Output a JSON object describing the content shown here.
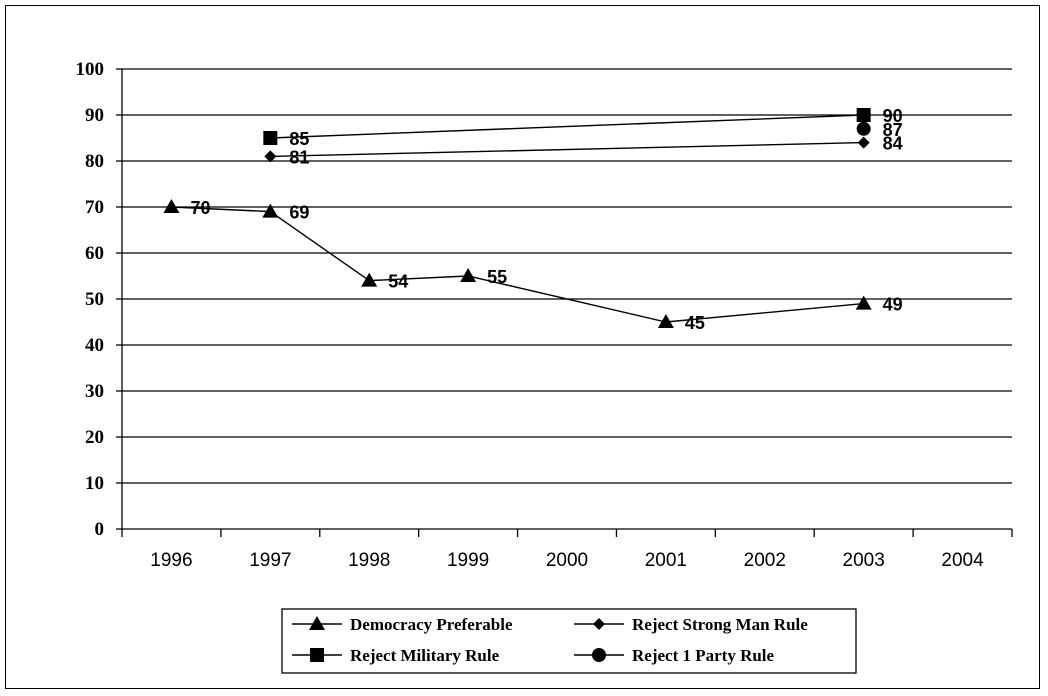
{
  "chart_data": {
    "type": "line",
    "title": "",
    "xlabel": "",
    "ylabel": "",
    "ylim": [
      0,
      100
    ],
    "yticks": [
      "0",
      "10",
      "20",
      "30",
      "40",
      "50",
      "60",
      "70",
      "80",
      "90",
      "100"
    ],
    "categories": [
      "1996",
      "1997",
      "1998",
      "1999",
      "2000",
      "2001",
      "2002",
      "2003",
      "2004"
    ],
    "grid": "horizontal",
    "legend_position": "bottom",
    "series": [
      {
        "name": "Democracy Preferable",
        "marker": "triangle",
        "points": [
          {
            "x": "1996",
            "y": 70,
            "label": "70"
          },
          {
            "x": "1997",
            "y": 69,
            "label": "69"
          },
          {
            "x": "1998",
            "y": 54,
            "label": "54"
          },
          {
            "x": "1999",
            "y": 55,
            "label": "55"
          },
          {
            "x": "2001",
            "y": 45,
            "label": "45"
          },
          {
            "x": "2003",
            "y": 49,
            "label": "49"
          }
        ]
      },
      {
        "name": "Reject Strong Man Rule",
        "marker": "diamond",
        "points": [
          {
            "x": "1997",
            "y": 81,
            "label": "81"
          },
          {
            "x": "2003",
            "y": 84,
            "label": "84"
          }
        ]
      },
      {
        "name": "Reject Military Rule",
        "marker": "square",
        "points": [
          {
            "x": "1997",
            "y": 85,
            "label": "85"
          },
          {
            "x": "2003",
            "y": 90,
            "label": "90"
          }
        ]
      },
      {
        "name": "Reject 1 Party Rule",
        "marker": "circle",
        "points": [
          {
            "x": "2003",
            "y": 87,
            "label": "87"
          }
        ]
      }
    ]
  }
}
